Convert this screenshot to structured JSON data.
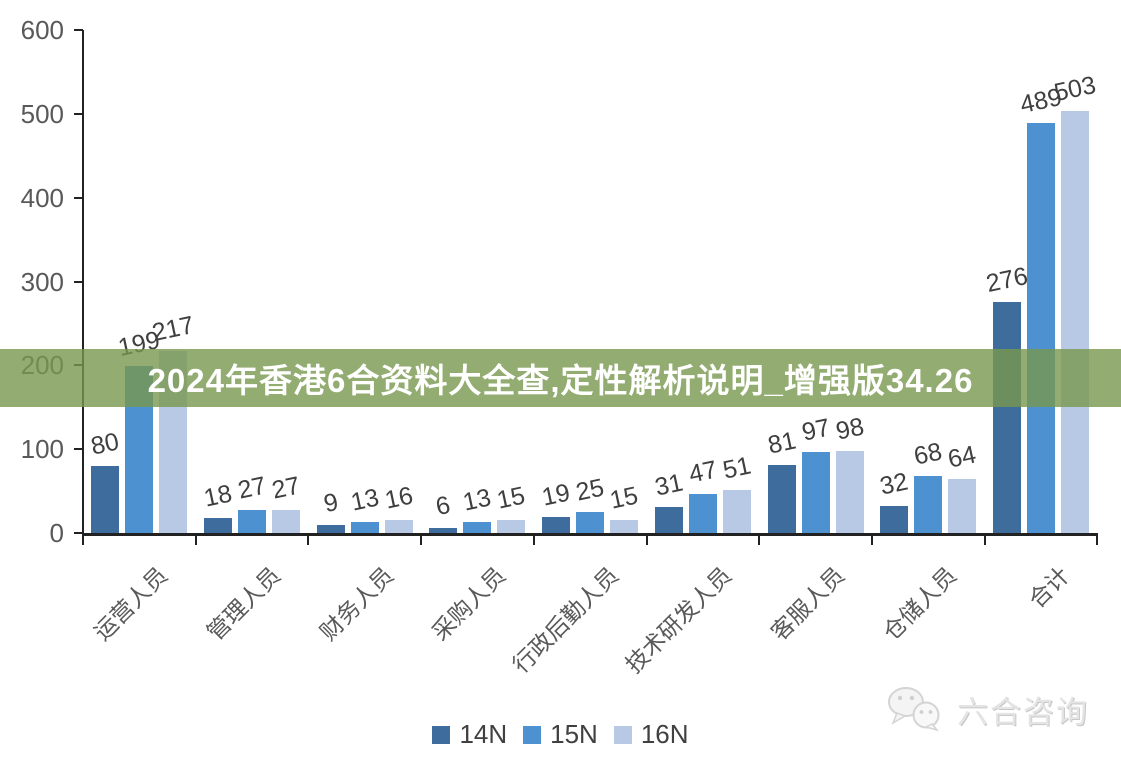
{
  "banner": {
    "text": "2024年香港6合资料大全查,定性解析说明_增强版34.26",
    "bg_color": "rgba(120,151,78,0.8)",
    "text_color": "#ffffff"
  },
  "watermark": {
    "text": "六合咨询",
    "icon": "wechat-chat-bubbles-icon"
  },
  "chart_data": {
    "type": "bar",
    "title": "",
    "xlabel": "",
    "ylabel": "",
    "categories": [
      "运营人员",
      "管理人员",
      "财务人员",
      "采购人员",
      "行政后勤人员",
      "技术研发人员",
      "客服人员",
      "仓储人员",
      "合计"
    ],
    "series": [
      {
        "name": "14N",
        "color": "#3E6D9D",
        "values": [
          80,
          18,
          9,
          6,
          19,
          31,
          81,
          32,
          276
        ]
      },
      {
        "name": "15N",
        "color": "#4E91D0",
        "values": [
          199,
          27,
          13,
          13,
          25,
          47,
          97,
          68,
          489
        ]
      },
      {
        "name": "16N",
        "color": "#B7C9E5",
        "values": [
          217,
          27,
          16,
          15,
          15,
          51,
          98,
          64,
          503
        ]
      }
    ],
    "ylim": [
      0,
      600
    ],
    "yticks": [
      0,
      100,
      200,
      300,
      400,
      500,
      600
    ],
    "legend_position": "bottom",
    "grid": false,
    "axis_color": "#222222",
    "tick_label_color": "#595959",
    "data_label_color": "#3f3f3f"
  }
}
